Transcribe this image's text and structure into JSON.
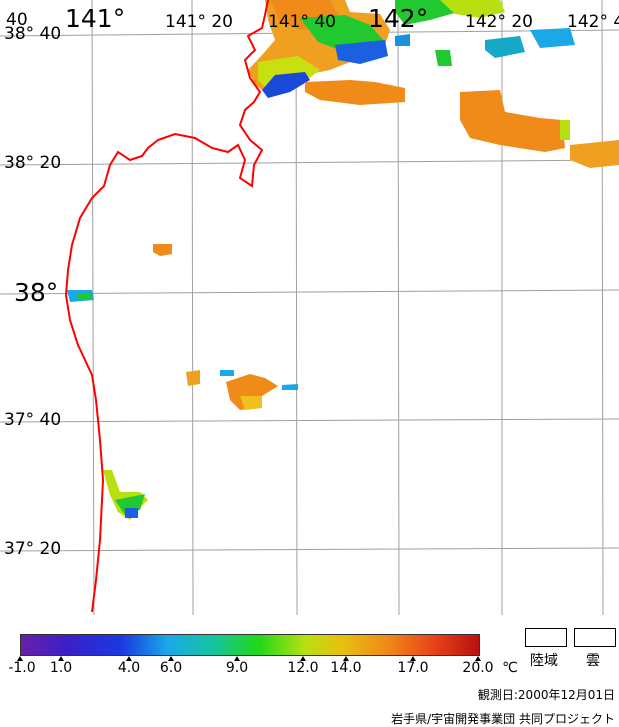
{
  "map": {
    "lat_labels": [
      "38° 40",
      "38° 20",
      "38°",
      "37° 40",
      "37° 20"
    ],
    "lon_labels": [
      "141°",
      "141° 20",
      "141° 40",
      "142°",
      "142° 20",
      "142° 4"
    ],
    "corner_label": "40",
    "coast_color": "#ff0000",
    "grid_color": "#a0a0a0"
  },
  "legend": {
    "ticks": [
      "-1.0",
      "1.0",
      "4.0",
      "6.0",
      "9.0",
      "12.0",
      "14.0",
      "17.0",
      "20.0"
    ],
    "unit": "℃",
    "land_label": "陸域",
    "cloud_label": "雲"
  },
  "footer": {
    "observation_date": "観測日:2000年12月01日",
    "credit": "岩手県/宇宙開発事業団 共同プロジェクト"
  }
}
